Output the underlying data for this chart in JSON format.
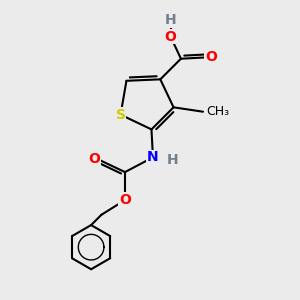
{
  "background_color": "#ebebeb",
  "atom_colors": {
    "C": "#000000",
    "H": "#708090",
    "O": "#ff0000",
    "N": "#0000ff",
    "S": "#cccc00"
  },
  "bond_color": "#000000",
  "bond_width": 1.5,
  "font_size": 10,
  "sX": 4.0,
  "sY": 6.2,
  "c2X": 5.05,
  "c2Y": 5.7,
  "c3X": 5.8,
  "c3Y": 6.45,
  "c4X": 5.35,
  "c4Y": 7.4,
  "c5X": 4.2,
  "c5Y": 7.35,
  "coohCX": 6.05,
  "coohCY": 8.1,
  "coohO1X": 7.0,
  "coohO1Y": 8.15,
  "coohO2X": 5.7,
  "coohO2Y": 8.85,
  "hX": 5.7,
  "hY": 9.35,
  "meX": 6.8,
  "meY": 6.3,
  "nhNX": 5.1,
  "nhNY": 4.75,
  "nhHX": 5.75,
  "nhHY": 4.65,
  "cbCX": 4.15,
  "cbCY": 4.25,
  "cbO1X": 3.2,
  "cbO1Y": 4.7,
  "cbO2X": 4.15,
  "cbO2Y": 3.3,
  "ch2X": 3.35,
  "ch2Y": 2.8,
  "benzCX": 3.0,
  "benzCY": 1.7,
  "benzR": 0.75
}
